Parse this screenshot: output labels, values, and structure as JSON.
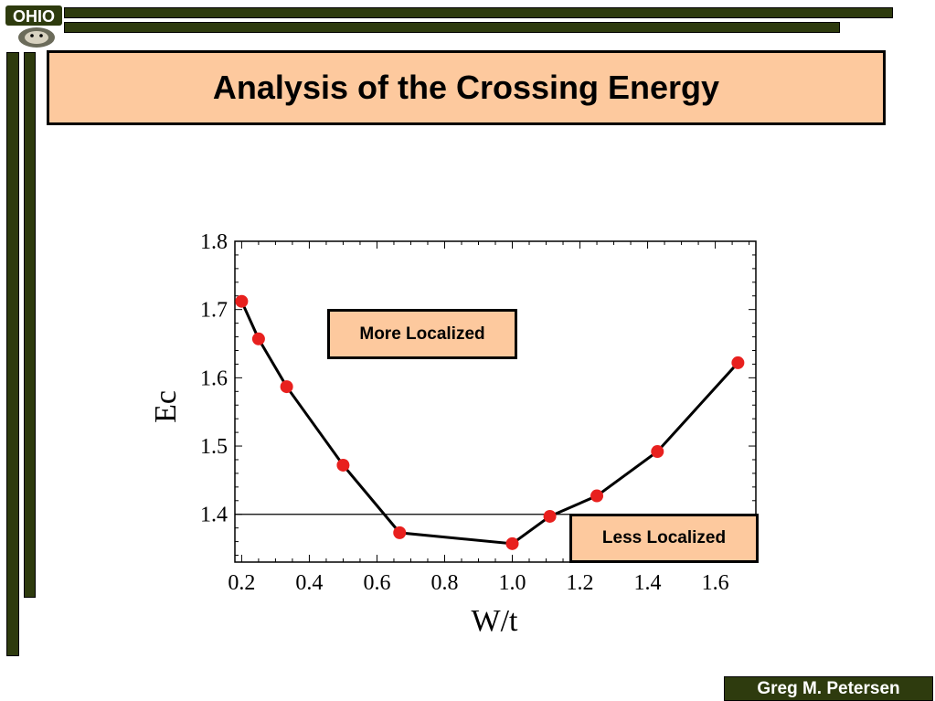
{
  "slide": {
    "title": "Analysis of the Crossing Energy",
    "author": "Greg M. Petersen",
    "logo_text": "OHIO"
  },
  "annotations": {
    "more_localized": "More Localized",
    "less_localized": "Less Localized"
  },
  "colors": {
    "accent_dark_green": "#2e3b0e",
    "box_fill": "#fdc99e",
    "marker_red": "#e8201e"
  },
  "chart_data": {
    "type": "line",
    "title": "",
    "xlabel": "W/t",
    "ylabel": "Ec",
    "xlim": [
      0.18,
      1.72
    ],
    "ylim": [
      1.33,
      1.8
    ],
    "xticks": [
      0.2,
      0.4,
      0.6,
      0.8,
      1.0,
      1.2,
      1.4,
      1.6
    ],
    "xtick_labels": [
      "0.2",
      "0.4",
      "0.6",
      "0.8",
      "1.0",
      "1.2",
      "1.4",
      "1.6"
    ],
    "yticks": [
      1.4,
      1.5,
      1.6,
      1.7,
      1.8
    ],
    "ytick_labels": [
      "1.4",
      "1.5",
      "1.6",
      "1.7",
      "1.8"
    ],
    "grid": false,
    "reference_line_y": 1.4,
    "series": [
      {
        "x": [
          0.2,
          0.25,
          0.333,
          0.5,
          0.667,
          1.0,
          1.111,
          1.25,
          1.429,
          1.667
        ],
        "y": [
          1.712,
          1.657,
          1.587,
          1.472,
          1.373,
          1.357,
          1.397,
          1.427,
          1.492,
          1.622
        ]
      }
    ]
  }
}
